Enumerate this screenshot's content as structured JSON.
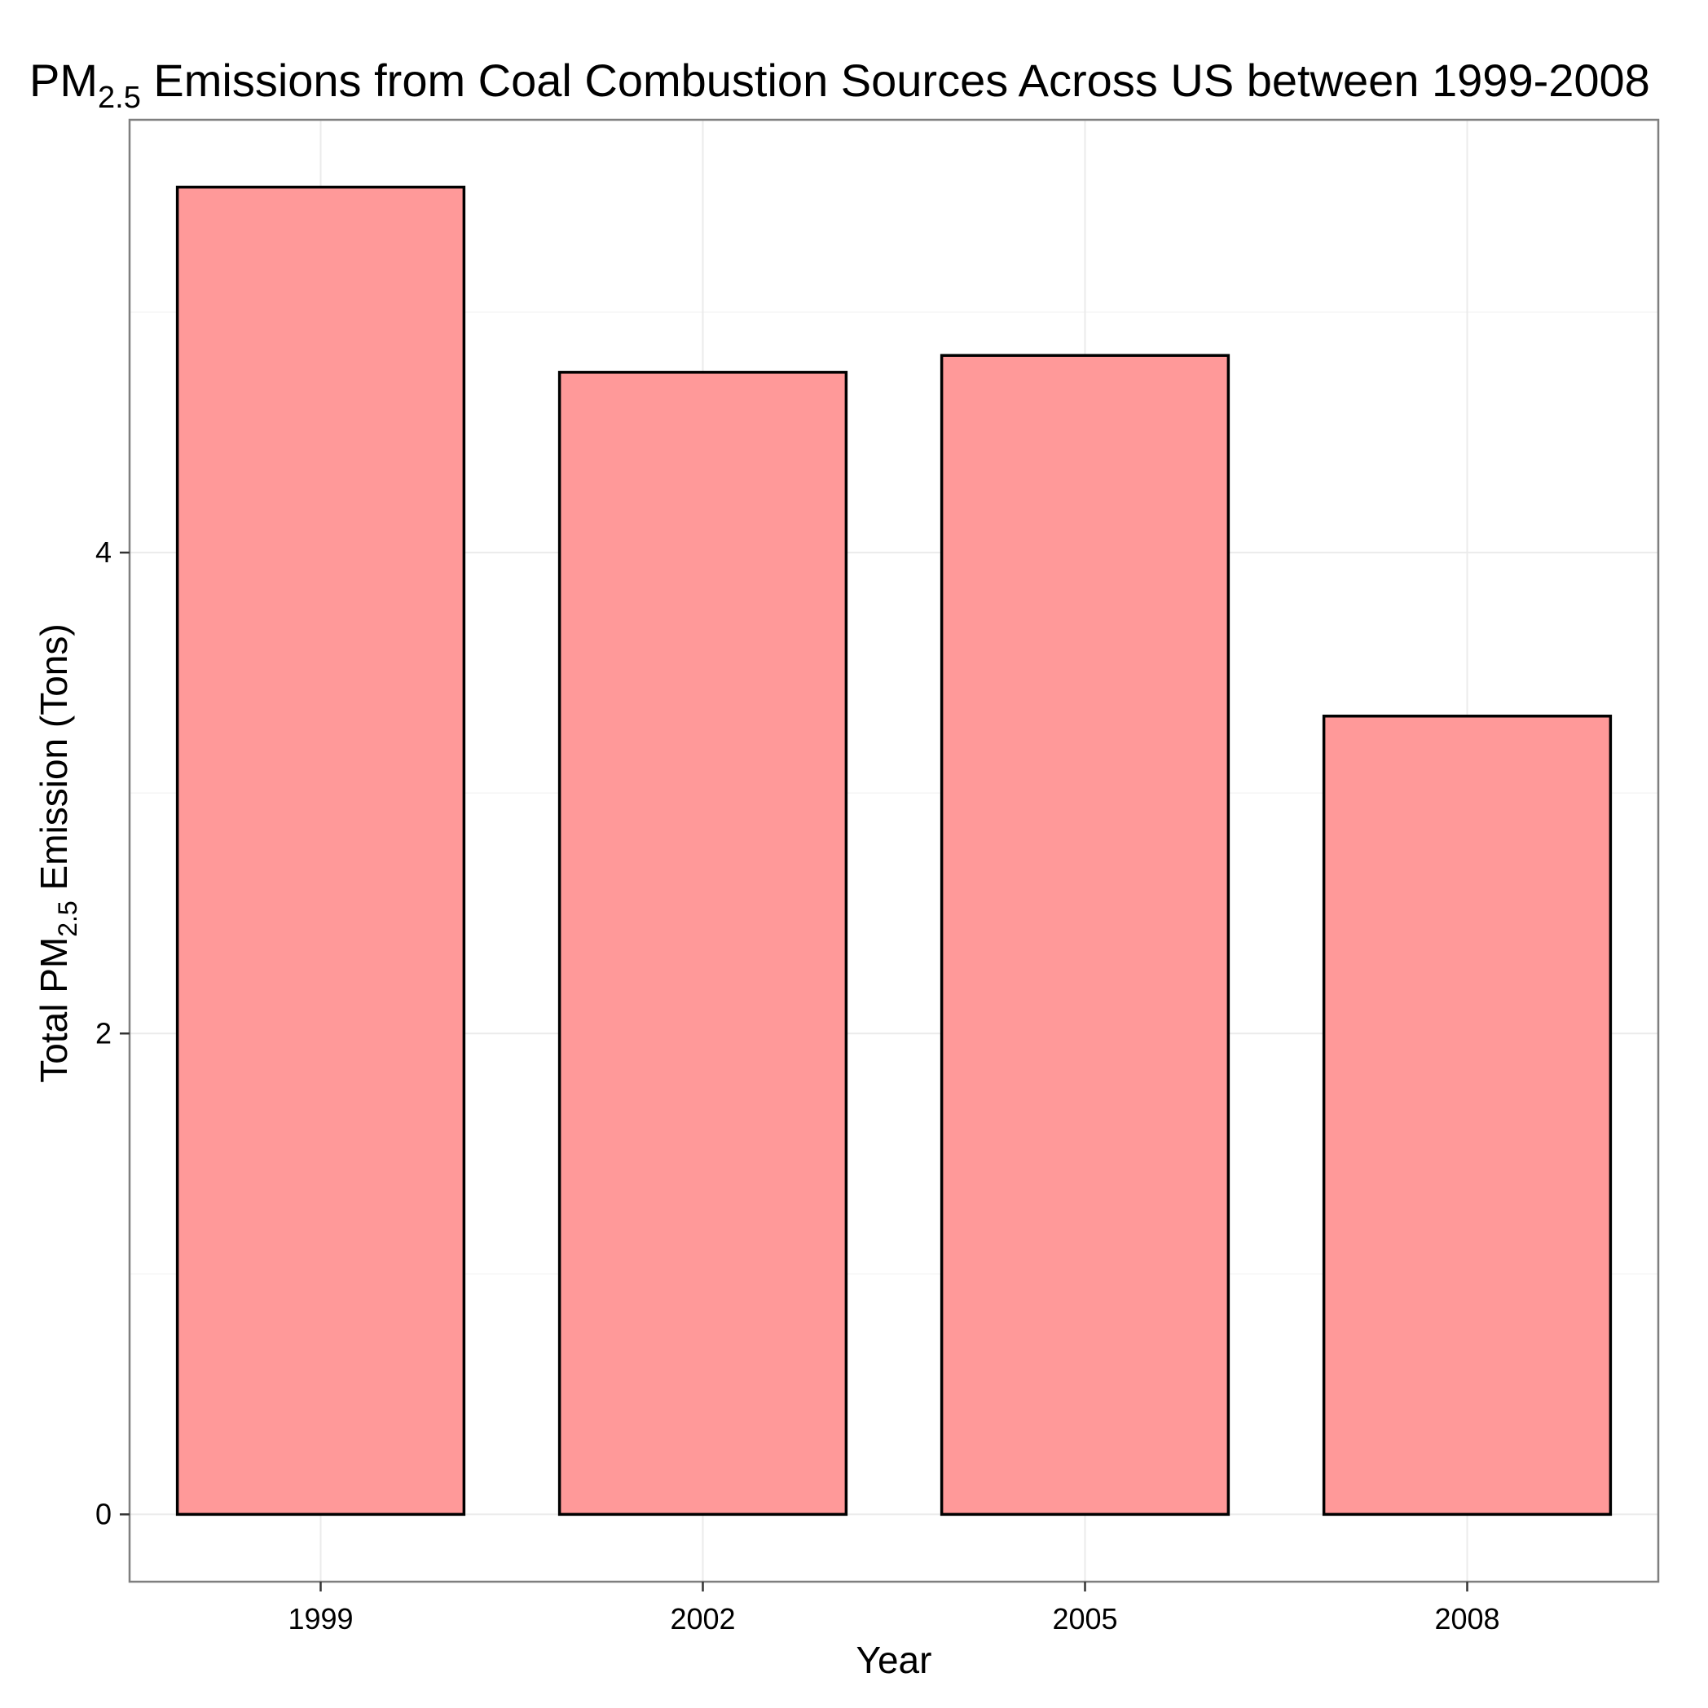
{
  "chart_data": {
    "type": "bar",
    "title": {
      "prefix": "PM",
      "subscript": "2.5",
      "suffix": " Emissions from Coal Combustion Sources Across US between 1999-2008"
    },
    "xlabel": "Year",
    "ylabel": {
      "prefix": "Total PM",
      "subscript": "2.5",
      "suffix": " Emission (Tons)"
    },
    "categories": [
      "1999",
      "2002",
      "2005",
      "2008"
    ],
    "values": [
      5.52,
      4.75,
      4.82,
      3.32
    ],
    "y_ticks": [
      0,
      2,
      4
    ],
    "y_tick_labels": [
      "0",
      "2",
      "4"
    ],
    "ylim": [
      -0.28,
      5.8
    ],
    "grid": true,
    "colors": {
      "bar_fill": "#ff9999",
      "bar_stroke": "#000000",
      "grid_major": "#ebebeb",
      "grid_minor": "#f5f5f5",
      "panel_border": "#7f7f7f"
    }
  }
}
